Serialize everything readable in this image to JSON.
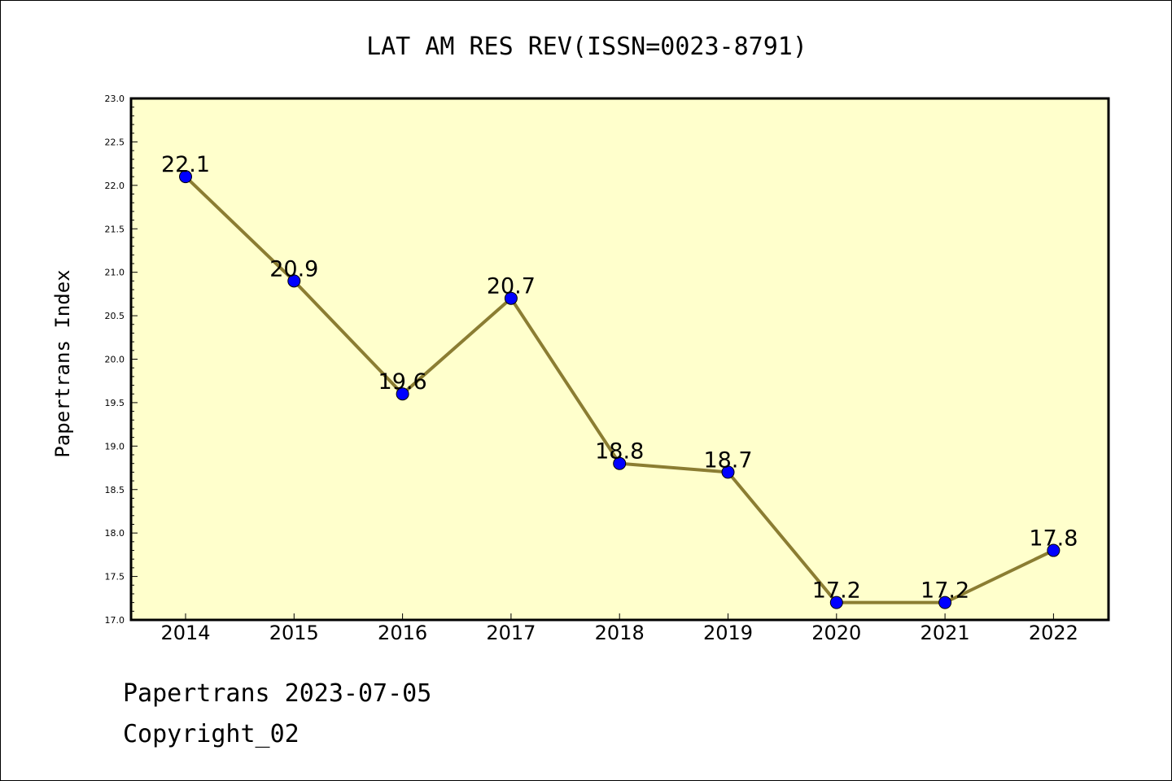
{
  "chart_data": {
    "type": "line",
    "title": "LAT AM RES REV(ISSN=0023-8791)",
    "xlabel": "",
    "ylabel": "Papertrans Index",
    "categories": [
      "2014",
      "2015",
      "2016",
      "2017",
      "2018",
      "2019",
      "2020",
      "2021",
      "2022"
    ],
    "series": [
      {
        "values": [
          22.1,
          20.9,
          19.6,
          20.7,
          18.8,
          18.7,
          17.2,
          17.2,
          17.8
        ],
        "labels": [
          "22.1",
          "20.9",
          "19.6",
          "20.7",
          "18.8",
          "18.7",
          "17.2",
          "17.2",
          "17.8"
        ]
      }
    ],
    "ylim": [
      17.0,
      23.0
    ],
    "yticks": [
      "17.0",
      "17.5",
      "18.0",
      "18.5",
      "19.0",
      "19.5",
      "20.0",
      "20.5",
      "21.0",
      "21.5",
      "22.0",
      "22.5",
      "23.0"
    ],
    "grid": false,
    "legend": "none",
    "colors": {
      "plot_background": "#ffffcc",
      "line": "#8b7d32",
      "marker": "#0000ff"
    }
  },
  "footer": {
    "line1": "Papertrans 2023-07-05",
    "line2": "Copyright_02"
  }
}
